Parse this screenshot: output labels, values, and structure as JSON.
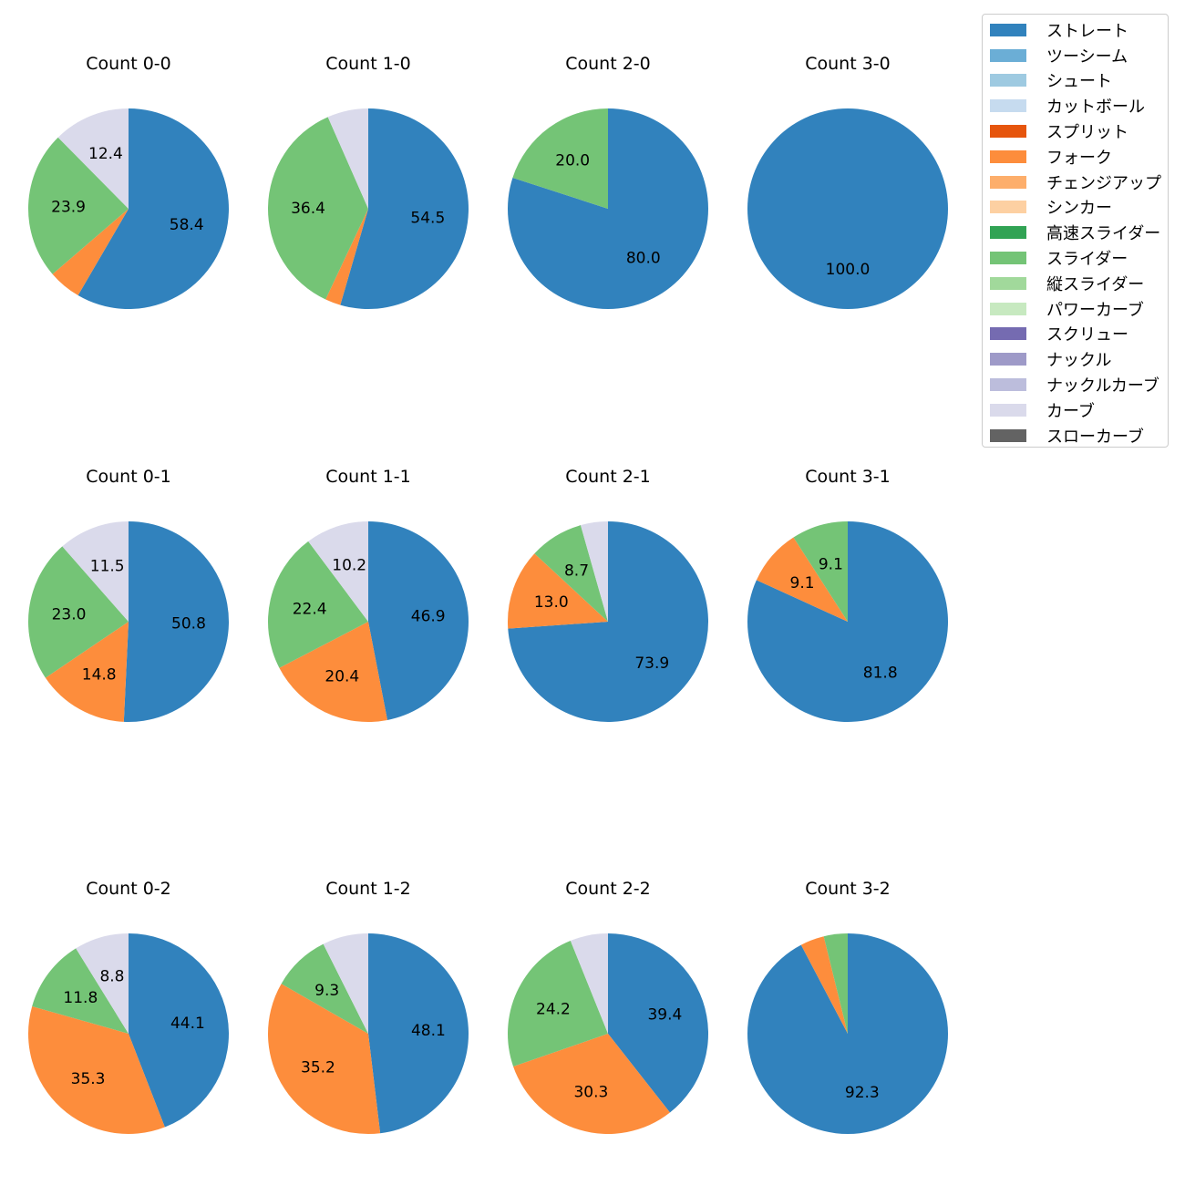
{
  "chart_data": {
    "type": "pie",
    "legend_position": "top-right",
    "legend": [
      {
        "label": "ストレート",
        "color": "#3182bd"
      },
      {
        "label": "ツーシーム",
        "color": "#6baed6"
      },
      {
        "label": "シュート",
        "color": "#9ecae1"
      },
      {
        "label": "カットボール",
        "color": "#c6dbef"
      },
      {
        "label": "スプリット",
        "color": "#e6550d"
      },
      {
        "label": "フォーク",
        "color": "#fd8d3c"
      },
      {
        "label": "チェンジアップ",
        "color": "#fdae6b"
      },
      {
        "label": "シンカー",
        "color": "#fdd0a2"
      },
      {
        "label": "高速スライダー",
        "color": "#31a354"
      },
      {
        "label": "スライダー",
        "color": "#74c476"
      },
      {
        "label": "縦スライダー",
        "color": "#a1d99b"
      },
      {
        "label": "パワーカーブ",
        "color": "#c7e9c0"
      },
      {
        "label": "スクリュー",
        "color": "#756bb1"
      },
      {
        "label": "ナックル",
        "color": "#9e9ac8"
      },
      {
        "label": "ナックルカーブ",
        "color": "#bcbddc"
      },
      {
        "label": "カーブ",
        "color": "#dadaeb"
      },
      {
        "label": "スローカーブ",
        "color": "#636363"
      }
    ],
    "pies": [
      {
        "title": "Count 0-0",
        "slices": [
          {
            "pitch": "ストレート",
            "value": 58.4,
            "label": "58.4"
          },
          {
            "pitch": "フォーク",
            "value": 5.3,
            "label": ""
          },
          {
            "pitch": "スライダー",
            "value": 23.9,
            "label": "23.9"
          },
          {
            "pitch": "カーブ",
            "value": 12.4,
            "label": "12.4"
          }
        ]
      },
      {
        "title": "Count 1-0",
        "slices": [
          {
            "pitch": "ストレート",
            "value": 54.5,
            "label": "54.5"
          },
          {
            "pitch": "フォーク",
            "value": 2.5,
            "label": ""
          },
          {
            "pitch": "スライダー",
            "value": 36.4,
            "label": "36.4"
          },
          {
            "pitch": "カーブ",
            "value": 6.6,
            "label": ""
          }
        ]
      },
      {
        "title": "Count 2-0",
        "slices": [
          {
            "pitch": "ストレート",
            "value": 80.0,
            "label": "80.0"
          },
          {
            "pitch": "スライダー",
            "value": 20.0,
            "label": "20.0"
          }
        ]
      },
      {
        "title": "Count 3-0",
        "slices": [
          {
            "pitch": "ストレート",
            "value": 100.0,
            "label": "100.0"
          }
        ]
      },
      {
        "title": "Count 0-1",
        "slices": [
          {
            "pitch": "ストレート",
            "value": 50.8,
            "label": "50.8"
          },
          {
            "pitch": "フォーク",
            "value": 14.8,
            "label": "14.8"
          },
          {
            "pitch": "スライダー",
            "value": 23.0,
            "label": "23.0"
          },
          {
            "pitch": "カーブ",
            "value": 11.5,
            "label": "11.5"
          }
        ]
      },
      {
        "title": "Count 1-1",
        "slices": [
          {
            "pitch": "ストレート",
            "value": 46.9,
            "label": "46.9"
          },
          {
            "pitch": "フォーク",
            "value": 20.4,
            "label": "20.4"
          },
          {
            "pitch": "スライダー",
            "value": 22.4,
            "label": "22.4"
          },
          {
            "pitch": "カーブ",
            "value": 10.2,
            "label": "10.2"
          }
        ]
      },
      {
        "title": "Count 2-1",
        "slices": [
          {
            "pitch": "ストレート",
            "value": 73.9,
            "label": "73.9"
          },
          {
            "pitch": "フォーク",
            "value": 13.0,
            "label": "13.0"
          },
          {
            "pitch": "スライダー",
            "value": 8.7,
            "label": "8.7"
          },
          {
            "pitch": "カーブ",
            "value": 4.4,
            "label": ""
          }
        ]
      },
      {
        "title": "Count 3-1",
        "slices": [
          {
            "pitch": "ストレート",
            "value": 81.8,
            "label": "81.8"
          },
          {
            "pitch": "フォーク",
            "value": 9.1,
            "label": "9.1"
          },
          {
            "pitch": "スライダー",
            "value": 9.1,
            "label": "9.1"
          }
        ]
      },
      {
        "title": "Count 0-2",
        "slices": [
          {
            "pitch": "ストレート",
            "value": 44.1,
            "label": "44.1"
          },
          {
            "pitch": "フォーク",
            "value": 35.3,
            "label": "35.3"
          },
          {
            "pitch": "スライダー",
            "value": 11.8,
            "label": "11.8"
          },
          {
            "pitch": "カーブ",
            "value": 8.8,
            "label": "8.8"
          }
        ]
      },
      {
        "title": "Count 1-2",
        "slices": [
          {
            "pitch": "ストレート",
            "value": 48.1,
            "label": "48.1"
          },
          {
            "pitch": "フォーク",
            "value": 35.2,
            "label": "35.2"
          },
          {
            "pitch": "スライダー",
            "value": 9.3,
            "label": "9.3"
          },
          {
            "pitch": "カーブ",
            "value": 7.4,
            "label": ""
          }
        ]
      },
      {
        "title": "Count 2-2",
        "slices": [
          {
            "pitch": "ストレート",
            "value": 39.4,
            "label": "39.4"
          },
          {
            "pitch": "フォーク",
            "value": 30.3,
            "label": "30.3"
          },
          {
            "pitch": "スライダー",
            "value": 24.2,
            "label": "24.2"
          },
          {
            "pitch": "カーブ",
            "value": 6.1,
            "label": ""
          }
        ]
      },
      {
        "title": "Count 3-2",
        "slices": [
          {
            "pitch": "ストレート",
            "value": 92.3,
            "label": "92.3"
          },
          {
            "pitch": "フォーク",
            "value": 3.85,
            "label": ""
          },
          {
            "pitch": "スライダー",
            "value": 3.85,
            "label": ""
          }
        ]
      }
    ]
  }
}
